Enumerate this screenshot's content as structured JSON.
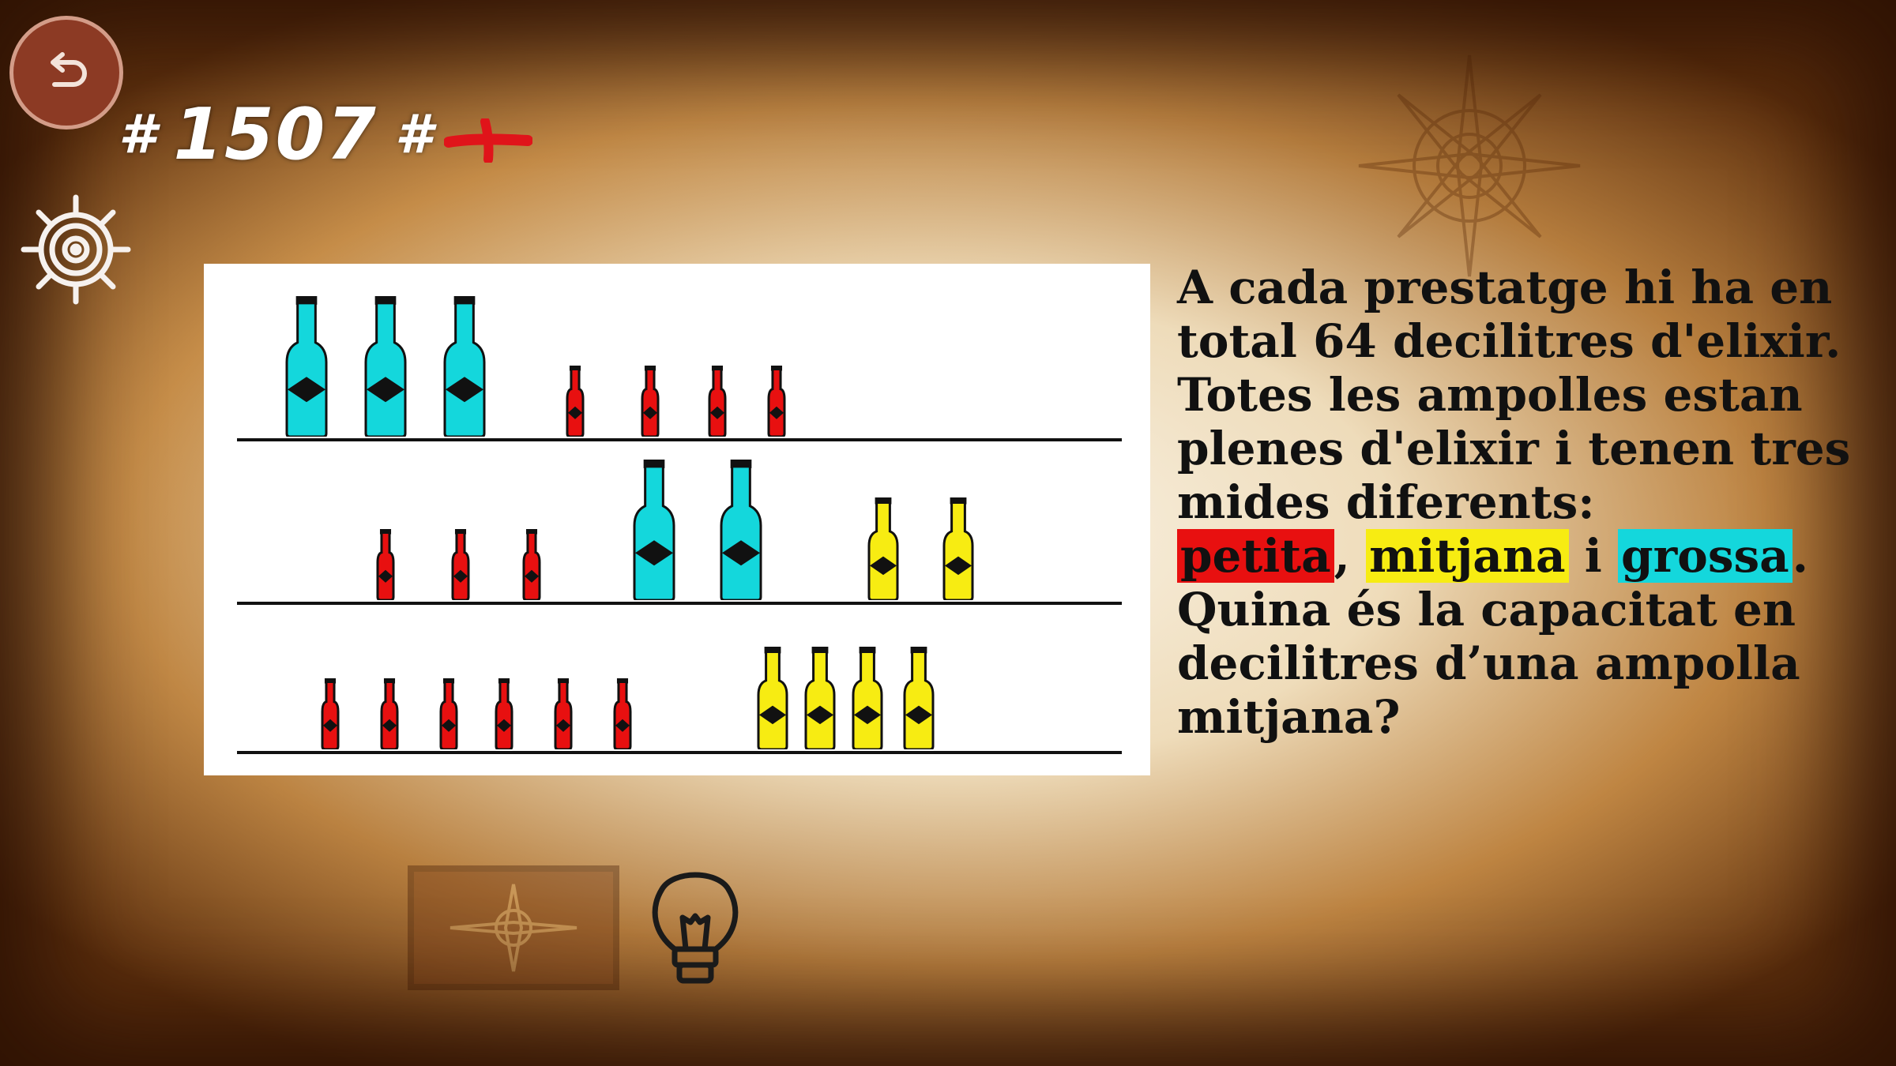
{
  "level": {
    "hash_left": "#",
    "number": "1507",
    "hash_right": "#"
  },
  "icons": {
    "back": "back-arrow-icon",
    "mark": "red-cross-icon",
    "settings": "ship-wheel-icon",
    "hint": "lightbulb-icon"
  },
  "colors": {
    "red": "#e81010",
    "yellow": "#f7ec12",
    "cyan": "#14d7dc",
    "back_button": "#8c3a24"
  },
  "puzzle": {
    "shelves": [
      {
        "bottles": [
          "large",
          "large",
          "large",
          "small",
          "small",
          "small",
          "small"
        ]
      },
      {
        "bottles": [
          "small",
          "small",
          "small",
          "large",
          "large",
          "medium",
          "medium"
        ]
      },
      {
        "bottles": [
          "small",
          "small",
          "small",
          "small",
          "small",
          "small",
          "medium",
          "medium",
          "medium",
          "medium"
        ]
      }
    ]
  },
  "question": {
    "line1": "A cada prestatge hi ha en",
    "line2": "total 64 decilitres d'elixir.",
    "line3": "Totes les ampolles estan",
    "line4": "plenes d'elixir i tenen tres",
    "line5": "mides diferents:",
    "small_label": "petita",
    "sep1": ",",
    "medium_label": "mitjana",
    "sep2": "i",
    "large_label": "grossa",
    "end": ".",
    "line7": "Quina és la capacitat en",
    "line8": "decilitres d’una ampolla",
    "line9": "mitjana?"
  }
}
